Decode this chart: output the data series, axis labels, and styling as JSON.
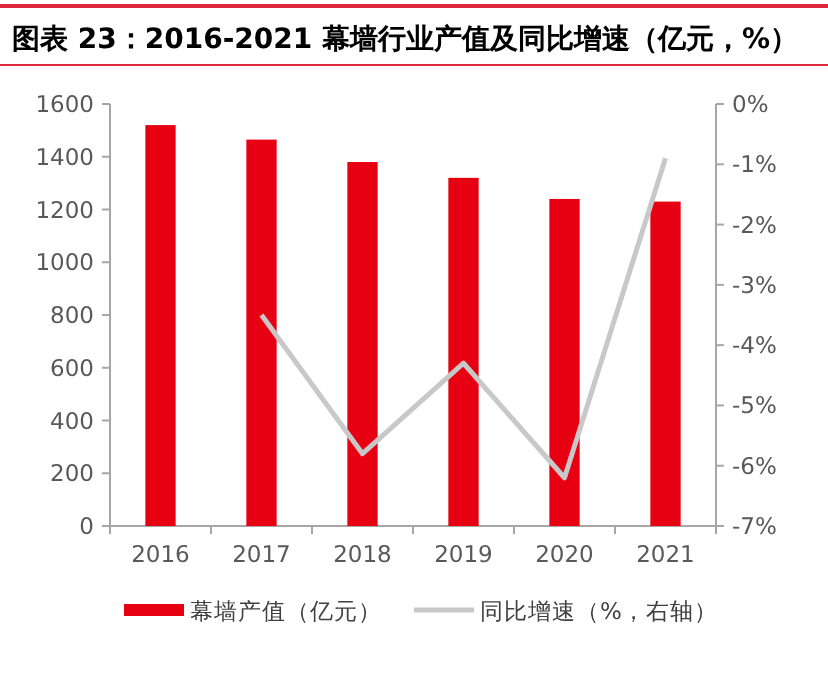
{
  "chart_data": {
    "type": "bar",
    "title": "图表 23：2016-2021 幕墙行业产值及同比增速（亿元，%）",
    "categories": [
      "2016",
      "2017",
      "2018",
      "2019",
      "2020",
      "2021"
    ],
    "series": [
      {
        "name": "幕墙产值（亿元）",
        "color": "#e60012",
        "values": [
          1520,
          1465,
          1380,
          1320,
          1240,
          1230
        ]
      },
      {
        "name": "同比增速（%，右轴）",
        "type": "line",
        "axis": "y2",
        "color": "#c8c8c8",
        "values": [
          null,
          -3.5,
          -5.8,
          -4.3,
          -6.2,
          -0.9
        ]
      }
    ],
    "ylim": [
      0,
      1600
    ],
    "yticks": [
      0,
      200,
      400,
      600,
      800,
      1000,
      1200,
      1400,
      1600
    ],
    "y2lim": [
      -7,
      0
    ],
    "y2ticks": [
      {
        "value": 0,
        "label": "0%"
      },
      {
        "value": -1,
        "label": "-1%"
      },
      {
        "value": -2,
        "label": "-2%"
      },
      {
        "value": -3,
        "label": "-3%"
      },
      {
        "value": -4,
        "label": "-4%"
      },
      {
        "value": -5,
        "label": "-5%"
      },
      {
        "value": -6,
        "label": "-6%"
      },
      {
        "value": -7,
        "label": "-7%"
      }
    ],
    "grid": false,
    "legend": "bottom",
    "marker": "none",
    "line_style": "solid"
  }
}
